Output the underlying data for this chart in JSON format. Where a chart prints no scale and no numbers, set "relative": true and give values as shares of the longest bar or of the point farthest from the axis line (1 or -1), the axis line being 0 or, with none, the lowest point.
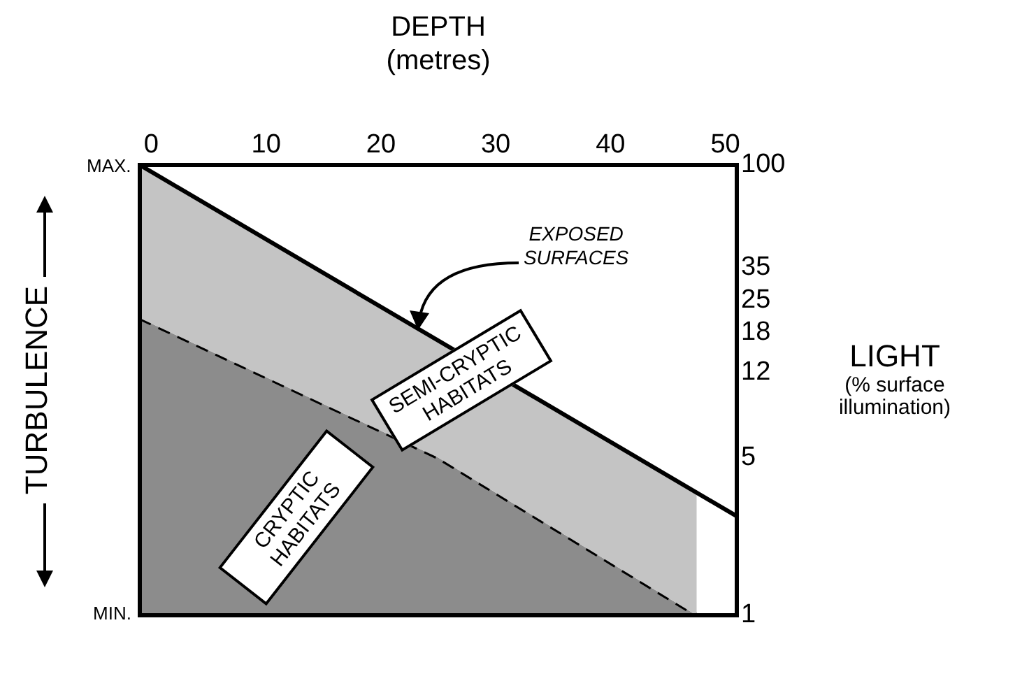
{
  "chart_data": {
    "type": "area",
    "xlabel": "DEPTH (metres)",
    "ylabel": "TURBULENCE",
    "y2label": "LIGHT (% surface illumination)",
    "xlim": [
      -1,
      51
    ],
    "xticks": [
      0,
      10,
      20,
      30,
      40,
      50
    ],
    "y2lim": [
      1,
      100
    ],
    "y2ticks": [
      100,
      35,
      25,
      18,
      12,
      5,
      1
    ],
    "log": "y2",
    "relative": true,
    "grid": false,
    "legend": false,
    "marker": "none",
    "series": [
      {
        "color": "#c4c4c4",
        "line_style": "solid",
        "x": [
          -1,
          51
        ],
        "values": [
          1,
          0.22
        ]
      },
      {
        "color": "#8c8c8c",
        "line_style": "dashed",
        "x": [
          -1,
          25,
          47.5
        ],
        "values": [
          0.66,
          0.35,
          0
        ]
      }
    ],
    "annotations": [
      {
        "text": "EXPOSED SURFACES",
        "x": 23,
        "y": 0.64
      },
      "SEMI-CRYPTIC HABITATS",
      "CRYPTIC HABITATS",
      "MAX.",
      "MIN."
    ]
  }
}
